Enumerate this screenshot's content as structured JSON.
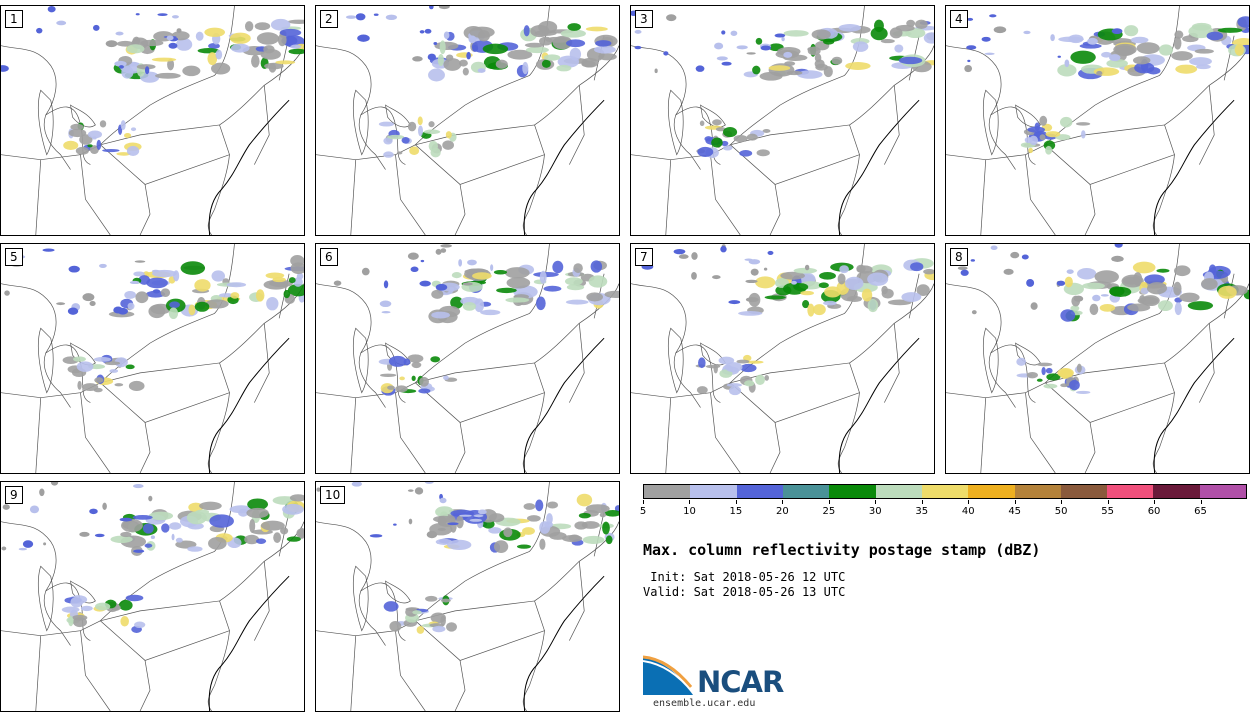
{
  "panels": [
    {
      "label": "1"
    },
    {
      "label": "2"
    },
    {
      "label": "3"
    },
    {
      "label": "4"
    },
    {
      "label": "5"
    },
    {
      "label": "6"
    },
    {
      "label": "7"
    },
    {
      "label": "8"
    },
    {
      "label": "9"
    },
    {
      "label": "10"
    }
  ],
  "colorbar": {
    "colors": [
      "#a0a0a0",
      "#b8c0ec",
      "#5464d8",
      "#4a9298",
      "#0a8a0a",
      "#bcdcbc",
      "#eedc6a",
      "#eeb020",
      "#b4823a",
      "#8a5a3c",
      "#f0507c",
      "#6a1a3a",
      "#b050a8"
    ],
    "tick_labels": [
      "5",
      "10",
      "15",
      "20",
      "25",
      "30",
      "35",
      "40",
      "45",
      "50",
      "55",
      "60",
      "65"
    ]
  },
  "title": "Max. column reflectivity postage stamp (dBZ)",
  "init_text": " Init: Sat 2018-05-26 12 UTC",
  "valid_text": "Valid: Sat 2018-05-26 13 UTC",
  "logo": {
    "text": "NCAR",
    "url": "ensemble.ucar.edu"
  }
}
